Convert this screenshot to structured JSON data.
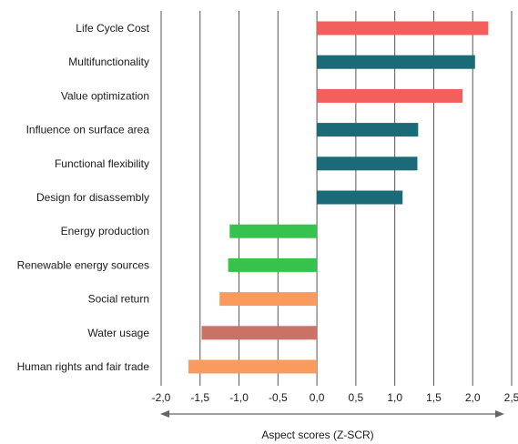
{
  "chart_data": {
    "type": "bar",
    "orientation": "horizontal",
    "categories": [
      "Life Cycle Cost",
      "Multifunctionality",
      "Value optimization",
      "Influence on surface area",
      "Functional flexibility",
      "Design for disassembly",
      "Energy production",
      "Renewable energy sources",
      "Social return",
      "Water usage",
      "Human rights and fair trade"
    ],
    "values": [
      2.2,
      2.03,
      1.87,
      1.3,
      1.29,
      1.1,
      -1.12,
      -1.14,
      -1.25,
      -1.48,
      -1.65
    ],
    "colors": [
      "#f25f5c",
      "#1a6a78",
      "#f25f5c",
      "#1a6a78",
      "#1a6a78",
      "#1a6a78",
      "#37c24e",
      "#37c24e",
      "#f99b5e",
      "#c97265",
      "#f99b5e"
    ],
    "xlim": [
      -2.0,
      2.5
    ],
    "xticks": [
      -2.0,
      -1.5,
      -1.0,
      -0.5,
      0.0,
      0.5,
      1.0,
      1.5,
      2.0,
      2.5
    ],
    "xtick_labels": [
      "-2,0",
      "-1,5",
      "-1,0",
      "-0,5",
      "0,0",
      "0,5",
      "1,0",
      "1,5",
      "2,0",
      "2,5"
    ],
    "xlabel": "Aspect scores (Z-SCR)",
    "title": "",
    "grid": "vertical",
    "legend": "none",
    "axis_color": "#666666",
    "grid_color": "#555555"
  }
}
